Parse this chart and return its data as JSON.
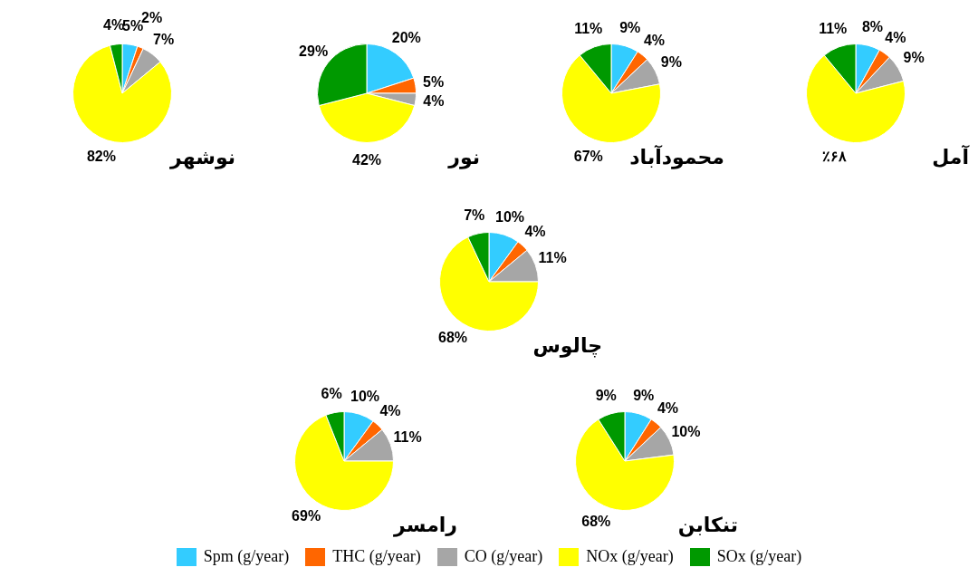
{
  "chart_data": [
    {
      "type": "pie",
      "title": "نوشهر",
      "categories": [
        "Spm (g/year)",
        "THC (g/year)",
        "CO (g/year)",
        "NOx (g/year)",
        "SOx (g/year)"
      ],
      "values": [
        5,
        2,
        7,
        82,
        4
      ],
      "colors": [
        "#33ccff",
        "#ff6600",
        "#a6a6a6",
        "#ffff00",
        "#009900"
      ],
      "value_labels": [
        "5%",
        "2%",
        "7%",
        "82%",
        "4%"
      ],
      "legend": "bottom"
    },
    {
      "type": "pie",
      "title": "نور",
      "categories": [
        null,
        null,
        null,
        null,
        null
      ],
      "values": [
        20,
        5,
        4,
        42,
        29
      ],
      "colors": [
        "#33ccff",
        "#ff6600",
        "#a6a6a6",
        "#ffff00",
        "#009900"
      ],
      "value_labels": [
        "20%",
        "5%",
        "4%",
        "42%",
        "29%"
      ]
    },
    {
      "type": "pie",
      "title": "محمودآباد",
      "categories": [
        null,
        null,
        null,
        null,
        null
      ],
      "values": [
        9,
        4,
        9,
        67,
        11
      ],
      "colors": [
        "#33ccff",
        "#ff6600",
        "#a6a6a6",
        "#ffff00",
        "#009900"
      ],
      "value_labels": [
        "9%",
        "4%",
        "9%",
        "67%",
        "11%"
      ]
    },
    {
      "type": "pie",
      "title": "آمل",
      "categories": [
        null,
        null,
        null,
        null,
        null
      ],
      "values": [
        8,
        4,
        9,
        68,
        11
      ],
      "colors": [
        "#33ccff",
        "#ff6600",
        "#a6a6a6",
        "#ffff00",
        "#009900"
      ],
      "value_labels": [
        "8%",
        "4%",
        "9%",
        "٪۶۸",
        "11%"
      ]
    },
    {
      "type": "pie",
      "title": "چالوس",
      "categories": [
        null,
        null,
        null,
        null,
        null
      ],
      "values": [
        10,
        4,
        11,
        68,
        7
      ],
      "colors": [
        "#33ccff",
        "#ff6600",
        "#a6a6a6",
        "#ffff00",
        "#009900"
      ],
      "value_labels": [
        "10%",
        "4%",
        "11%",
        "68%",
        "7%"
      ]
    },
    {
      "type": "pie",
      "title": "رامسر",
      "categories": [
        null,
        null,
        null,
        null,
        null
      ],
      "values": [
        10,
        4,
        11,
        69,
        6
      ],
      "colors": [
        "#33ccff",
        "#ff6600",
        "#a6a6a6",
        "#ffff00",
        "#009900"
      ],
      "value_labels": [
        "10%",
        "4%",
        "11%",
        "69%",
        "6%"
      ]
    },
    {
      "type": "pie",
      "title": "تنکابن",
      "categories": [
        null,
        null,
        null,
        null,
        null
      ],
      "values": [
        9,
        4,
        10,
        68,
        9
      ],
      "colors": [
        "#33ccff",
        "#ff6600",
        "#a6a6a6",
        "#ffff00",
        "#009900"
      ],
      "value_labels": [
        "9%",
        "4%",
        "10%",
        "68%",
        "9%"
      ]
    }
  ]
}
